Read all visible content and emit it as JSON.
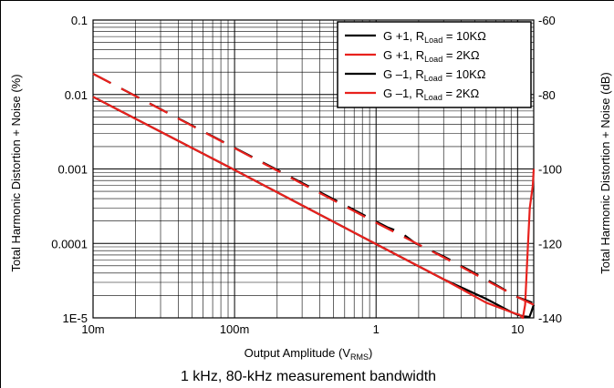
{
  "caption": "1 kHz, 80-kHz measurement bandwidth",
  "chart_data": {
    "type": "line",
    "title": "",
    "xlabel": "Output Amplitude (V",
    "xlabel_sub": "RMS",
    "xlabel_suffix": ")",
    "ylabel": "Total Harmonic Distortion + Noise (%)",
    "y2label": "Total Harmonic Distortion + Noise (dB)",
    "x_scale": "log",
    "y_scale": "log",
    "xlim": [
      0.01,
      13
    ],
    "ylim": [
      1e-05,
      0.1
    ],
    "y2lim": [
      -140,
      -60
    ],
    "grid": true,
    "legend_position": "top-right",
    "x_ticks": [
      {
        "value": 0.01,
        "label": "10m"
      },
      {
        "value": 0.1,
        "label": "100m"
      },
      {
        "value": 1,
        "label": "1"
      },
      {
        "value": 10,
        "label": "10"
      }
    ],
    "y_ticks": [
      {
        "value": 0.1,
        "label": "0.1"
      },
      {
        "value": 0.01,
        "label": "0.01"
      },
      {
        "value": 0.001,
        "label": "0.001"
      },
      {
        "value": 0.0001,
        "label": "0.0001"
      },
      {
        "value": 1e-05,
        "label": "1E-5"
      }
    ],
    "y2_ticks": [
      {
        "value": -60,
        "label": "-60"
      },
      {
        "value": -80,
        "label": "-80"
      },
      {
        "value": -100,
        "label": "-100"
      },
      {
        "value": -120,
        "label": "-120"
      },
      {
        "value": -140,
        "label": "-140"
      }
    ],
    "series": [
      {
        "name": "G +1, R",
        "name_sub": "Load",
        "name_suffix": " = 10KΩ",
        "color": "#000000",
        "dashed": false,
        "x": [
          0.01,
          0.1,
          1,
          3,
          6,
          9,
          10,
          11,
          11.6,
          12.1,
          12.5,
          13
        ],
        "y": [
          0.0093,
          0.00097,
          9.8e-05,
          3.3e-05,
          1.8e-05,
          1.2e-05,
          1.1e-05,
          1.05e-05,
          1.04e-05,
          1.02e-05,
          1.2e-05,
          1.5e-05
        ]
      },
      {
        "name": "G +1, R",
        "name_sub": "Load",
        "name_suffix": " = 2KΩ",
        "color": "#e8211d",
        "dashed": false,
        "x": [
          0.01,
          0.1,
          1,
          3,
          6,
          9.5,
          10.3,
          10.9,
          11.3,
          11.7,
          12.2,
          12.8,
          13
        ],
        "y": [
          0.0093,
          0.00097,
          9.8e-05,
          3.3e-05,
          1.6e-05,
          1.15e-05,
          1.1e-05,
          1e-05,
          1.5e-05,
          6e-05,
          0.0003,
          0.0006,
          0.001
        ]
      },
      {
        "name": "G –1, R",
        "name_sub": "Load",
        "name_suffix": " = 10KΩ",
        "color": "#000000",
        "dashed": true,
        "x": [
          0.01,
          0.06,
          0.08,
          1.2,
          1.5,
          1.9,
          3,
          6,
          10,
          12.7
        ],
        "y": [
          0.019,
          0.0032,
          0.0024,
          0.000165,
          0.00014,
          0.0001,
          6.7e-05,
          3.3e-05,
          1.9e-05,
          1.6e-05
        ]
      },
      {
        "name": "G –1, R",
        "name_sub": "Load",
        "name_suffix": " = 2KΩ",
        "color": "#e8211d",
        "dashed": true,
        "x": [
          0.01,
          0.1,
          1,
          3,
          6,
          10,
          13
        ],
        "y": [
          0.019,
          0.0019,
          0.00019,
          6.5e-05,
          3.2e-05,
          1.9e-05,
          1.5e-05
        ]
      }
    ]
  }
}
